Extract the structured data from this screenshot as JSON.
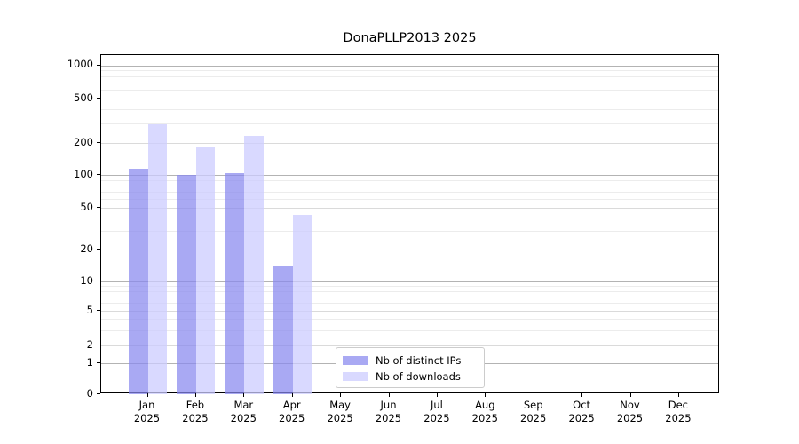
{
  "chart_data": {
    "type": "bar",
    "title": "DonaPLLP2013 2025",
    "categories": [
      "Jan",
      "Feb",
      "Mar",
      "Apr",
      "May",
      "Jun",
      "Jul",
      "Aug",
      "Sep",
      "Oct",
      "Nov",
      "Dec"
    ],
    "category_year": "2025",
    "series": [
      {
        "name": "Nb of distinct IPs",
        "color": "rgba(136,136,238,0.72)",
        "values": [
          115,
          100,
          104,
          14,
          0,
          0,
          0,
          0,
          0,
          0,
          0,
          0
        ]
      },
      {
        "name": "Nb of downloads",
        "color": "rgba(204,204,255,0.75)",
        "values": [
          295,
          185,
          230,
          43,
          0,
          0,
          0,
          0,
          0,
          0,
          0,
          0
        ]
      }
    ],
    "yticks": [
      0,
      1,
      2,
      5,
      10,
      20,
      50,
      100,
      200,
      500,
      1000
    ],
    "ytick_labels": [
      "0",
      "1",
      "2",
      "5",
      "10",
      "20",
      "50",
      "100",
      "200",
      "500",
      "1000"
    ],
    "decade_ticks": [
      1,
      10,
      100,
      1000
    ],
    "minor_ticks": [
      3,
      4,
      6,
      7,
      8,
      9,
      30,
      40,
      60,
      70,
      80,
      90,
      300,
      400,
      600,
      700,
      800,
      900
    ],
    "yscale": "symlog",
    "grid": true,
    "legend_position": "lower-center-inside",
    "scale_anchors": [
      [
        0,
        443
      ],
      [
        1,
        408
      ],
      [
        2,
        388
      ],
      [
        5,
        349
      ],
      [
        10,
        316
      ],
      [
        20,
        280
      ],
      [
        50,
        233
      ],
      [
        100,
        196
      ],
      [
        200,
        160
      ],
      [
        500,
        110
      ],
      [
        1000,
        72.5
      ]
    ]
  }
}
